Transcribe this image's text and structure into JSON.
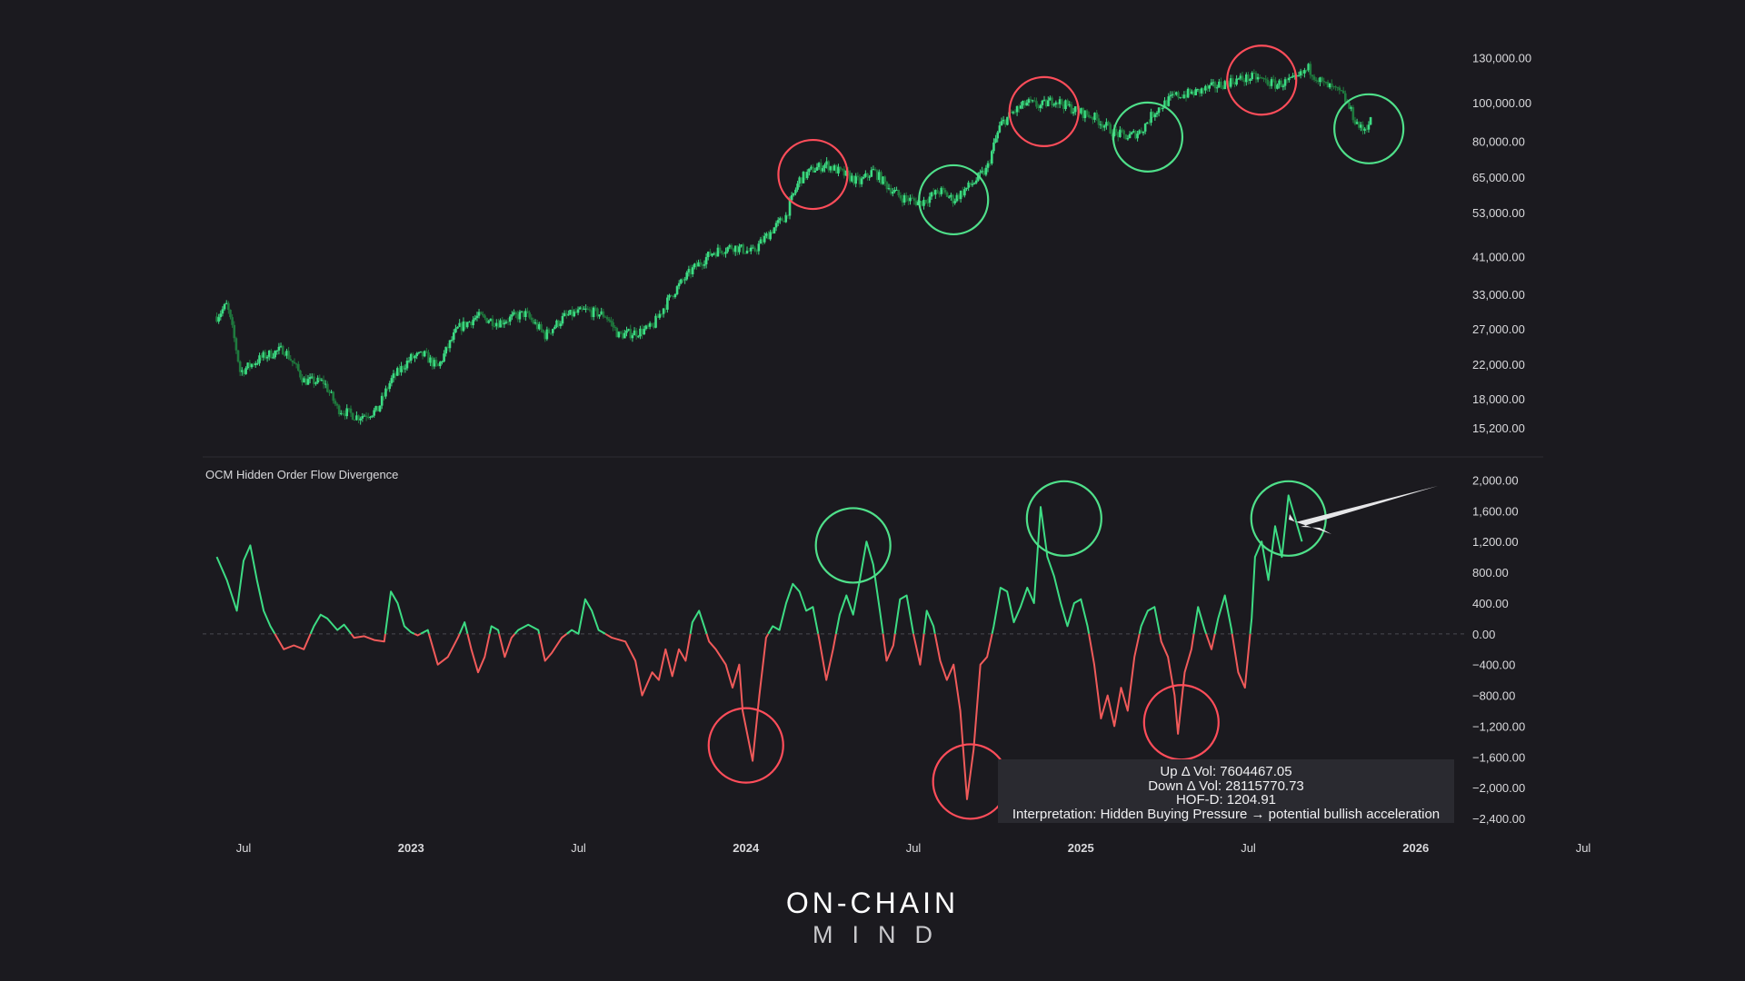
{
  "chart_data": [
    {
      "type": "candlestick",
      "title": "",
      "y_scale": "log",
      "ylim": [
        14500,
        165000
      ],
      "ytick_labels": [
        "130,000.00",
        "100,000.00",
        "80,000.00",
        "65,000.00",
        "53,000.00",
        "41,000.00",
        "33,000.00",
        "27,000.00",
        "22,000.00",
        "18,000.00",
        "15,200.00"
      ],
      "ytick_values": [
        130000,
        100000,
        80000,
        65000,
        53000,
        41000,
        33000,
        27000,
        22000,
        18000,
        15200
      ],
      "price_path": [
        {
          "t": 0,
          "v": 29000
        },
        {
          "t": 0.03,
          "v": 31000
        },
        {
          "t": 0.07,
          "v": 21000
        },
        {
          "t": 0.14,
          "v": 23000
        },
        {
          "t": 0.2,
          "v": 24000
        },
        {
          "t": 0.26,
          "v": 20000
        },
        {
          "t": 0.32,
          "v": 19800
        },
        {
          "t": 0.36,
          "v": 17000
        },
        {
          "t": 0.42,
          "v": 16200
        },
        {
          "t": 0.48,
          "v": 16800
        },
        {
          "t": 0.52,
          "v": 20000
        },
        {
          "t": 0.58,
          "v": 22800
        },
        {
          "t": 0.62,
          "v": 23200
        },
        {
          "t": 0.66,
          "v": 21500
        },
        {
          "t": 0.72,
          "v": 27000
        },
        {
          "t": 0.78,
          "v": 29000
        },
        {
          "t": 0.84,
          "v": 28000
        },
        {
          "t": 0.92,
          "v": 29500
        },
        {
          "t": 0.98,
          "v": 26000
        },
        {
          "t": 1.04,
          "v": 29000
        },
        {
          "t": 1.1,
          "v": 30000
        },
        {
          "t": 1.16,
          "v": 29200
        },
        {
          "t": 1.2,
          "v": 26000
        },
        {
          "t": 1.26,
          "v": 26500
        },
        {
          "t": 1.3,
          "v": 27200
        },
        {
          "t": 1.36,
          "v": 33000
        },
        {
          "t": 1.42,
          "v": 38000
        },
        {
          "t": 1.48,
          "v": 42000
        },
        {
          "t": 1.54,
          "v": 43500
        },
        {
          "t": 1.6,
          "v": 42000
        },
        {
          "t": 1.66,
          "v": 48000
        },
        {
          "t": 1.7,
          "v": 52000
        },
        {
          "t": 1.74,
          "v": 64000
        },
        {
          "t": 1.78,
          "v": 68000
        },
        {
          "t": 1.82,
          "v": 70000
        },
        {
          "t": 1.86,
          "v": 67000
        },
        {
          "t": 1.92,
          "v": 63000
        },
        {
          "t": 1.96,
          "v": 67500
        },
        {
          "t": 2.0,
          "v": 62000
        },
        {
          "t": 2.04,
          "v": 58000
        },
        {
          "t": 2.1,
          "v": 56000
        },
        {
          "t": 2.16,
          "v": 60000
        },
        {
          "t": 2.2,
          "v": 57000
        },
        {
          "t": 2.26,
          "v": 63000
        },
        {
          "t": 2.3,
          "v": 68000
        },
        {
          "t": 2.34,
          "v": 88000
        },
        {
          "t": 2.38,
          "v": 95000
        },
        {
          "t": 2.42,
          "v": 100000
        },
        {
          "t": 2.46,
          "v": 98000
        },
        {
          "t": 2.5,
          "v": 102000
        },
        {
          "t": 2.56,
          "v": 96000
        },
        {
          "t": 2.62,
          "v": 92000
        },
        {
          "t": 2.68,
          "v": 84000
        },
        {
          "t": 2.72,
          "v": 82000
        },
        {
          "t": 2.76,
          "v": 85000
        },
        {
          "t": 2.8,
          "v": 95000
        },
        {
          "t": 2.86,
          "v": 104000
        },
        {
          "t": 2.92,
          "v": 106000
        },
        {
          "t": 2.98,
          "v": 110000
        },
        {
          "t": 3.04,
          "v": 114000
        },
        {
          "t": 3.1,
          "v": 116000
        },
        {
          "t": 3.16,
          "v": 111000
        },
        {
          "t": 3.22,
          "v": 114000
        },
        {
          "t": 3.26,
          "v": 122000
        },
        {
          "t": 3.3,
          "v": 112000
        },
        {
          "t": 3.36,
          "v": 105000
        },
        {
          "t": 3.4,
          "v": 90000
        },
        {
          "t": 3.42,
          "v": 85000
        },
        {
          "t": 3.45,
          "v": 91000
        }
      ],
      "highlight_circles": [
        {
          "t": 1.78,
          "v": 66000,
          "color": "#ff4d5a"
        },
        {
          "t": 2.2,
          "v": 57000,
          "color": "#4fe08a"
        },
        {
          "t": 2.47,
          "v": 95000,
          "color": "#ff4d5a"
        },
        {
          "t": 2.78,
          "v": 82000,
          "color": "#4fe08a"
        },
        {
          "t": 3.12,
          "v": 114000,
          "color": "#ff4d5a"
        },
        {
          "t": 3.44,
          "v": 86000,
          "color": "#4fe08a"
        }
      ]
    },
    {
      "type": "line",
      "title": "OCM Hidden Order Flow Divergence",
      "ylim": [
        -2600,
        2100
      ],
      "ytick_labels": [
        "2,000.00",
        "1,600.00",
        "1,200.00",
        "800.00",
        "400.00",
        "0.00",
        "−400.00",
        "−800.00",
        "−1,200.00",
        "−1,600.00",
        "−2,000.00",
        "−2,400.00"
      ],
      "ytick_values": [
        2000,
        1600,
        1200,
        800,
        400,
        0,
        -400,
        -800,
        -1200,
        -1600,
        -2000,
        -2400
      ],
      "zero_line": true,
      "positive_color": "#3ddc84",
      "negative_color": "#f05a5a",
      "series": [
        {
          "t": 0,
          "v": 1000
        },
        {
          "t": 0.03,
          "v": 700
        },
        {
          "t": 0.06,
          "v": 300
        },
        {
          "t": 0.08,
          "v": 950
        },
        {
          "t": 0.1,
          "v": 1150
        },
        {
          "t": 0.12,
          "v": 700
        },
        {
          "t": 0.14,
          "v": 300
        },
        {
          "t": 0.16,
          "v": 100
        },
        {
          "t": 0.18,
          "v": -50
        },
        {
          "t": 0.2,
          "v": -200
        },
        {
          "t": 0.23,
          "v": -150
        },
        {
          "t": 0.26,
          "v": -200
        },
        {
          "t": 0.29,
          "v": 100
        },
        {
          "t": 0.31,
          "v": 250
        },
        {
          "t": 0.33,
          "v": 200
        },
        {
          "t": 0.36,
          "v": 50
        },
        {
          "t": 0.38,
          "v": 120
        },
        {
          "t": 0.41,
          "v": -50
        },
        {
          "t": 0.44,
          "v": -30
        },
        {
          "t": 0.47,
          "v": -80
        },
        {
          "t": 0.5,
          "v": -100
        },
        {
          "t": 0.52,
          "v": 550
        },
        {
          "t": 0.54,
          "v": 400
        },
        {
          "t": 0.56,
          "v": 100
        },
        {
          "t": 0.58,
          "v": 20
        },
        {
          "t": 0.6,
          "v": -20
        },
        {
          "t": 0.63,
          "v": 50
        },
        {
          "t": 0.66,
          "v": -400
        },
        {
          "t": 0.69,
          "v": -300
        },
        {
          "t": 0.72,
          "v": -50
        },
        {
          "t": 0.74,
          "v": 150
        },
        {
          "t": 0.76,
          "v": -200
        },
        {
          "t": 0.78,
          "v": -500
        },
        {
          "t": 0.8,
          "v": -300
        },
        {
          "t": 0.82,
          "v": 100
        },
        {
          "t": 0.84,
          "v": 50
        },
        {
          "t": 0.86,
          "v": -300
        },
        {
          "t": 0.88,
          "v": -50
        },
        {
          "t": 0.9,
          "v": 50
        },
        {
          "t": 0.93,
          "v": 120
        },
        {
          "t": 0.96,
          "v": 50
        },
        {
          "t": 0.98,
          "v": -350
        },
        {
          "t": 1.0,
          "v": -250
        },
        {
          "t": 1.03,
          "v": -50
        },
        {
          "t": 1.06,
          "v": 50
        },
        {
          "t": 1.08,
          "v": 0
        },
        {
          "t": 1.1,
          "v": 450
        },
        {
          "t": 1.12,
          "v": 300
        },
        {
          "t": 1.14,
          "v": 50
        },
        {
          "t": 1.18,
          "v": -50
        },
        {
          "t": 1.22,
          "v": -100
        },
        {
          "t": 1.25,
          "v": -350
        },
        {
          "t": 1.27,
          "v": -800
        },
        {
          "t": 1.3,
          "v": -500
        },
        {
          "t": 1.32,
          "v": -600
        },
        {
          "t": 1.34,
          "v": -200
        },
        {
          "t": 1.36,
          "v": -550
        },
        {
          "t": 1.38,
          "v": -200
        },
        {
          "t": 1.4,
          "v": -350
        },
        {
          "t": 1.42,
          "v": 150
        },
        {
          "t": 1.44,
          "v": 300
        },
        {
          "t": 1.47,
          "v": -100
        },
        {
          "t": 1.49,
          "v": -200
        },
        {
          "t": 1.52,
          "v": -400
        },
        {
          "t": 1.54,
          "v": -700
        },
        {
          "t": 1.56,
          "v": -400
        },
        {
          "t": 1.57,
          "v": -1000
        },
        {
          "t": 1.6,
          "v": -1650
        },
        {
          "t": 1.62,
          "v": -800
        },
        {
          "t": 1.64,
          "v": -50
        },
        {
          "t": 1.66,
          "v": 100
        },
        {
          "t": 1.68,
          "v": 50
        },
        {
          "t": 1.7,
          "v": 400
        },
        {
          "t": 1.72,
          "v": 650
        },
        {
          "t": 1.74,
          "v": 550
        },
        {
          "t": 1.76,
          "v": 300
        },
        {
          "t": 1.78,
          "v": 350
        },
        {
          "t": 1.8,
          "v": -100
        },
        {
          "t": 1.82,
          "v": -600
        },
        {
          "t": 1.84,
          "v": -200
        },
        {
          "t": 1.86,
          "v": 250
        },
        {
          "t": 1.88,
          "v": 500
        },
        {
          "t": 1.9,
          "v": 250
        },
        {
          "t": 1.92,
          "v": 700
        },
        {
          "t": 1.94,
          "v": 1200
        },
        {
          "t": 1.96,
          "v": 900
        },
        {
          "t": 1.98,
          "v": 300
        },
        {
          "t": 2.0,
          "v": -350
        },
        {
          "t": 2.02,
          "v": -150
        },
        {
          "t": 2.04,
          "v": 450
        },
        {
          "t": 2.06,
          "v": 500
        },
        {
          "t": 2.08,
          "v": 0
        },
        {
          "t": 2.1,
          "v": -400
        },
        {
          "t": 2.12,
          "v": 300
        },
        {
          "t": 2.14,
          "v": 100
        },
        {
          "t": 2.16,
          "v": -350
        },
        {
          "t": 2.18,
          "v": -600
        },
        {
          "t": 2.2,
          "v": -400
        },
        {
          "t": 2.22,
          "v": -1000
        },
        {
          "t": 2.24,
          "v": -2150
        },
        {
          "t": 2.26,
          "v": -1500
        },
        {
          "t": 2.28,
          "v": -400
        },
        {
          "t": 2.3,
          "v": -300
        },
        {
          "t": 2.32,
          "v": 100
        },
        {
          "t": 2.34,
          "v": 600
        },
        {
          "t": 2.36,
          "v": 550
        },
        {
          "t": 2.38,
          "v": 150
        },
        {
          "t": 2.4,
          "v": 350
        },
        {
          "t": 2.42,
          "v": 600
        },
        {
          "t": 2.44,
          "v": 400
        },
        {
          "t": 2.46,
          "v": 1650
        },
        {
          "t": 2.48,
          "v": 1000
        },
        {
          "t": 2.5,
          "v": 750
        },
        {
          "t": 2.52,
          "v": 400
        },
        {
          "t": 2.54,
          "v": 100
        },
        {
          "t": 2.56,
          "v": 400
        },
        {
          "t": 2.58,
          "v": 450
        },
        {
          "t": 2.6,
          "v": 100
        },
        {
          "t": 2.62,
          "v": -400
        },
        {
          "t": 2.64,
          "v": -1100
        },
        {
          "t": 2.66,
          "v": -800
        },
        {
          "t": 2.68,
          "v": -1200
        },
        {
          "t": 2.7,
          "v": -700
        },
        {
          "t": 2.72,
          "v": -1000
        },
        {
          "t": 2.74,
          "v": -300
        },
        {
          "t": 2.76,
          "v": 100
        },
        {
          "t": 2.78,
          "v": 300
        },
        {
          "t": 2.8,
          "v": 350
        },
        {
          "t": 2.82,
          "v": -100
        },
        {
          "t": 2.84,
          "v": -300
        },
        {
          "t": 2.86,
          "v": -800
        },
        {
          "t": 2.87,
          "v": -1300
        },
        {
          "t": 2.89,
          "v": -500
        },
        {
          "t": 2.91,
          "v": -200
        },
        {
          "t": 2.93,
          "v": 350
        },
        {
          "t": 2.95,
          "v": 50
        },
        {
          "t": 2.97,
          "v": -200
        },
        {
          "t": 2.99,
          "v": 200
        },
        {
          "t": 3.01,
          "v": 500
        },
        {
          "t": 3.03,
          "v": 50
        },
        {
          "t": 3.05,
          "v": -500
        },
        {
          "t": 3.07,
          "v": -700
        },
        {
          "t": 3.09,
          "v": 200
        },
        {
          "t": 3.1,
          "v": 1000
        },
        {
          "t": 3.12,
          "v": 1200
        },
        {
          "t": 3.14,
          "v": 700
        },
        {
          "t": 3.16,
          "v": 1400
        },
        {
          "t": 3.18,
          "v": 1000
        },
        {
          "t": 3.2,
          "v": 1800
        },
        {
          "t": 3.22,
          "v": 1500
        },
        {
          "t": 3.24,
          "v": 1200
        }
      ],
      "highlight_circles": [
        {
          "t": 1.58,
          "v": -1450,
          "color": "#ff4d5a"
        },
        {
          "t": 1.9,
          "v": 1150,
          "color": "#4fe08a"
        },
        {
          "t": 2.25,
          "v": -1920,
          "color": "#ff4d5a"
        },
        {
          "t": 2.53,
          "v": 1500,
          "color": "#4fe08a"
        },
        {
          "t": 2.88,
          "v": -1150,
          "color": "#ff4d5a"
        },
        {
          "t": 3.2,
          "v": 1500,
          "color": "#4fe08a"
        }
      ],
      "annotation": "arrow pointing to latest positive spike"
    }
  ],
  "x_axis": {
    "labels": [
      {
        "text": "Jul",
        "t": 0.08,
        "bold": false
      },
      {
        "text": "2023",
        "t": 0.58,
        "bold": true
      },
      {
        "text": "Jul",
        "t": 1.08,
        "bold": false
      },
      {
        "text": "2024",
        "t": 1.58,
        "bold": true
      },
      {
        "text": "Jul",
        "t": 2.08,
        "bold": false
      },
      {
        "text": "2025",
        "t": 2.58,
        "bold": true
      },
      {
        "text": "Jul",
        "t": 3.08,
        "bold": false
      },
      {
        "text": "2026",
        "t": 3.58,
        "bold": true
      },
      {
        "text": "Jul",
        "t": 4.08,
        "bold": false
      }
    ]
  },
  "info_box": {
    "up_vol": "Up Δ Vol: 7604467.05",
    "down_vol": "Down Δ Vol: 28115770.73",
    "hofd": "HOF-D: 1204.91",
    "interpretation": "Interpretation: Hidden Buying Pressure → potential bullish acceleration"
  },
  "brand": {
    "main": "ON-CHAIN",
    "sub": "MIND"
  },
  "colors": {
    "background": "#1b1a1f",
    "text": "#d9d9dc",
    "candle_up": "#3ddc84",
    "candle_dark": "#1f7a3e",
    "red": "#ff4d5a",
    "green": "#4fe08a",
    "arrow": "#e6e6e8"
  }
}
